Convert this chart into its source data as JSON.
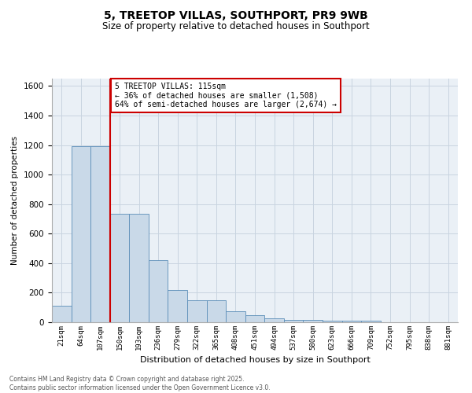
{
  "title": "5, TREETOP VILLAS, SOUTHPORT, PR9 9WB",
  "subtitle": "Size of property relative to detached houses in Southport",
  "xlabel": "Distribution of detached houses by size in Southport",
  "ylabel": "Number of detached properties",
  "bar_color": "#c9d9e8",
  "bar_edge_color": "#5b8db8",
  "categories": [
    "21sqm",
    "64sqm",
    "107sqm",
    "150sqm",
    "193sqm",
    "236sqm",
    "279sqm",
    "322sqm",
    "365sqm",
    "408sqm",
    "451sqm",
    "494sqm",
    "537sqm",
    "580sqm",
    "623sqm",
    "666sqm",
    "709sqm",
    "752sqm",
    "795sqm",
    "838sqm",
    "881sqm"
  ],
  "values": [
    110,
    1190,
    1190,
    735,
    735,
    420,
    220,
    148,
    148,
    73,
    50,
    28,
    18,
    18,
    12,
    12,
    12,
    0,
    0,
    0,
    0
  ],
  "vline_x_index": 2,
  "vline_color": "#cc0000",
  "annotation_text": "5 TREETOP VILLAS: 115sqm\n← 36% of detached houses are smaller (1,508)\n64% of semi-detached houses are larger (2,674) →",
  "annotation_box_color": "#ffffff",
  "annotation_box_edge": "#cc0000",
  "ylim": [
    0,
    1650
  ],
  "yticks": [
    0,
    200,
    400,
    600,
    800,
    1000,
    1200,
    1400,
    1600
  ],
  "footer": "Contains HM Land Registry data © Crown copyright and database right 2025.\nContains public sector information licensed under the Open Government Licence v3.0.",
  "grid_color": "#c8d4e0",
  "background_color": "#eaf0f6",
  "fig_bg": "#ffffff"
}
